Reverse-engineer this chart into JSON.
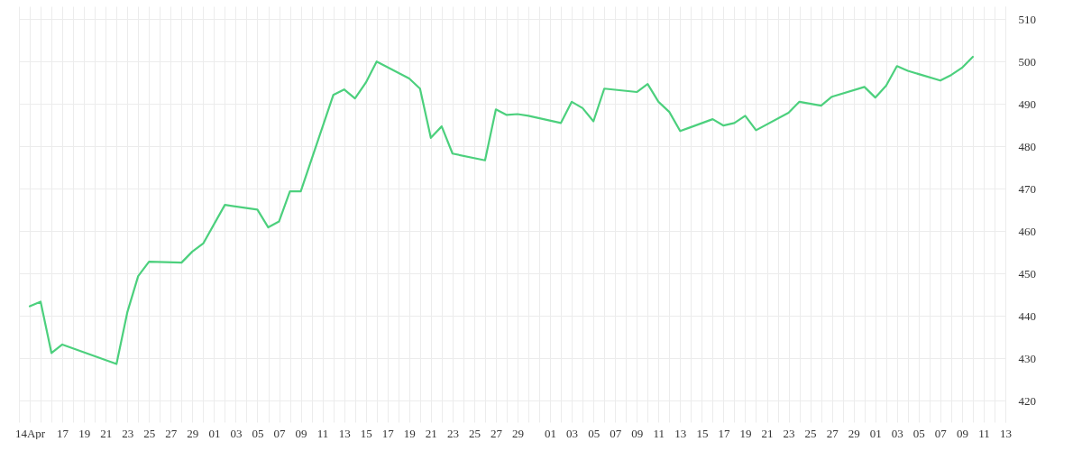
{
  "chart_data": {
    "type": "line",
    "x": [
      "--04-14",
      "--04-15",
      "--04-16",
      "--04-17",
      "--04-22",
      "--04-23",
      "--04-24",
      "--04-25",
      "--04-28",
      "--04-29",
      "--04-30",
      "--05-02",
      "--05-05",
      "--05-06",
      "--05-07",
      "--05-08",
      "--05-09",
      "--05-12",
      "--05-13",
      "--05-14",
      "--05-15",
      "--05-16",
      "--05-19",
      "--05-20",
      "--05-21",
      "--05-22",
      "--05-23",
      "--05-26",
      "--05-27",
      "--05-28",
      "--05-29",
      "--05-30",
      "--06-02",
      "--06-03",
      "--06-04",
      "--06-05",
      "--06-06",
      "--06-09",
      "--06-10",
      "--06-11",
      "--06-12",
      "--06-13",
      "--06-16",
      "--06-17",
      "--06-18",
      "--06-19",
      "--06-20",
      "--06-23",
      "--06-24",
      "--06-26",
      "--06-27",
      "--06-30",
      "--07-01",
      "--07-02",
      "--07-03",
      "--07-04",
      "--07-07",
      "--07-08",
      "--07-09",
      "--07-10"
    ],
    "series": [
      {
        "color": "#4cd07d",
        "values": [
          442.3,
          443.4,
          431.3,
          433.3,
          428.7,
          440.9,
          449.4,
          452.8,
          452.6,
          455.2,
          457.1,
          466.2,
          465.1,
          460.9,
          462.3,
          469.4,
          469.4,
          492.1,
          493.4,
          491.3,
          495.0,
          500.0,
          496.0,
          493.6,
          482.0,
          484.7,
          478.3,
          476.7,
          488.7,
          487.4,
          487.6,
          487.2,
          485.5,
          490.5,
          489.0,
          485.9,
          493.6,
          492.8,
          494.7,
          490.5,
          488.1,
          483.6,
          486.4,
          484.9,
          485.5,
          487.2,
          483.8,
          487.9,
          490.5,
          489.6,
          491.7,
          494.0,
          491.5,
          494.3,
          498.9,
          497.8,
          495.5,
          496.8,
          498.5,
          501.1
        ]
      }
    ],
    "xlim": [
      "--04-13",
      "--07-13"
    ],
    "ylim": [
      415,
      513
    ],
    "yticks": [
      420,
      430,
      440,
      450,
      460,
      470,
      480,
      490,
      500,
      510
    ],
    "xticks": [
      {
        "value": "--04-13",
        "label": null
      },
      {
        "value": "--04-14",
        "label": "14Apr"
      },
      {
        "value": "--04-15",
        "label": null
      },
      {
        "value": "--04-16",
        "label": null
      },
      {
        "value": "--04-17",
        "label": "17"
      },
      {
        "value": "--04-18",
        "label": null
      },
      {
        "value": "--04-19",
        "label": "19"
      },
      {
        "value": "--04-20",
        "label": null
      },
      {
        "value": "--04-21",
        "label": "21"
      },
      {
        "value": "--04-22",
        "label": null
      },
      {
        "value": "--04-23",
        "label": "23"
      },
      {
        "value": "--04-24",
        "label": null
      },
      {
        "value": "--04-25",
        "label": "25"
      },
      {
        "value": "--04-26",
        "label": null
      },
      {
        "value": "--04-27",
        "label": "27"
      },
      {
        "value": "--04-28",
        "label": null
      },
      {
        "value": "--04-29",
        "label": "29"
      },
      {
        "value": "--04-30",
        "label": null
      },
      {
        "value": "--05-01",
        "label": "01"
      },
      {
        "value": "--05-02",
        "label": null
      },
      {
        "value": "--05-03",
        "label": "03"
      },
      {
        "value": "--05-04",
        "label": null
      },
      {
        "value": "--05-05",
        "label": "05"
      },
      {
        "value": "--05-06",
        "label": null
      },
      {
        "value": "--05-07",
        "label": "07"
      },
      {
        "value": "--05-08",
        "label": null
      },
      {
        "value": "--05-09",
        "label": "09"
      },
      {
        "value": "--05-10",
        "label": null
      },
      {
        "value": "--05-11",
        "label": "11"
      },
      {
        "value": "--05-12",
        "label": null
      },
      {
        "value": "--05-13",
        "label": "13"
      },
      {
        "value": "--05-14",
        "label": null
      },
      {
        "value": "--05-15",
        "label": "15"
      },
      {
        "value": "--05-16",
        "label": null
      },
      {
        "value": "--05-17",
        "label": "17"
      },
      {
        "value": "--05-18",
        "label": null
      },
      {
        "value": "--05-19",
        "label": "19"
      },
      {
        "value": "--05-20",
        "label": null
      },
      {
        "value": "--05-21",
        "label": "21"
      },
      {
        "value": "--05-22",
        "label": null
      },
      {
        "value": "--05-23",
        "label": "23"
      },
      {
        "value": "--05-24",
        "label": null
      },
      {
        "value": "--05-25",
        "label": "25"
      },
      {
        "value": "--05-26",
        "label": null
      },
      {
        "value": "--05-27",
        "label": "27"
      },
      {
        "value": "--05-28",
        "label": null
      },
      {
        "value": "--05-29",
        "label": "29"
      },
      {
        "value": "--05-30",
        "label": null
      },
      {
        "value": "--05-31",
        "label": null
      },
      {
        "value": "--06-01",
        "label": "01"
      },
      {
        "value": "--06-02",
        "label": null
      },
      {
        "value": "--06-03",
        "label": "03"
      },
      {
        "value": "--06-04",
        "label": null
      },
      {
        "value": "--06-05",
        "label": "05"
      },
      {
        "value": "--06-06",
        "label": null
      },
      {
        "value": "--06-07",
        "label": "07"
      },
      {
        "value": "--06-08",
        "label": null
      },
      {
        "value": "--06-09",
        "label": "09"
      },
      {
        "value": "--06-10",
        "label": null
      },
      {
        "value": "--06-11",
        "label": "11"
      },
      {
        "value": "--06-12",
        "label": null
      },
      {
        "value": "--06-13",
        "label": "13"
      },
      {
        "value": "--06-14",
        "label": null
      },
      {
        "value": "--06-15",
        "label": "15"
      },
      {
        "value": "--06-16",
        "label": null
      },
      {
        "value": "--06-17",
        "label": "17"
      },
      {
        "value": "--06-18",
        "label": null
      },
      {
        "value": "--06-19",
        "label": "19"
      },
      {
        "value": "--06-20",
        "label": null
      },
      {
        "value": "--06-21",
        "label": "21"
      },
      {
        "value": "--06-22",
        "label": null
      },
      {
        "value": "--06-23",
        "label": "23"
      },
      {
        "value": "--06-24",
        "label": null
      },
      {
        "value": "--06-25",
        "label": "25"
      },
      {
        "value": "--06-26",
        "label": null
      },
      {
        "value": "--06-27",
        "label": "27"
      },
      {
        "value": "--06-28",
        "label": null
      },
      {
        "value": "--06-29",
        "label": "29"
      },
      {
        "value": "--06-30",
        "label": null
      },
      {
        "value": "--07-01",
        "label": "01"
      },
      {
        "value": "--07-02",
        "label": null
      },
      {
        "value": "--07-03",
        "label": "03"
      },
      {
        "value": "--07-04",
        "label": null
      },
      {
        "value": "--07-05",
        "label": "05"
      },
      {
        "value": "--07-06",
        "label": null
      },
      {
        "value": "--07-07",
        "label": "07"
      },
      {
        "value": "--07-08",
        "label": null
      },
      {
        "value": "--07-09",
        "label": "09"
      },
      {
        "value": "--07-10",
        "label": null
      },
      {
        "value": "--07-11",
        "label": "11"
      },
      {
        "value": "--07-12",
        "label": null
      },
      {
        "value": "--07-13",
        "label": "13"
      }
    ],
    "grid": true
  }
}
